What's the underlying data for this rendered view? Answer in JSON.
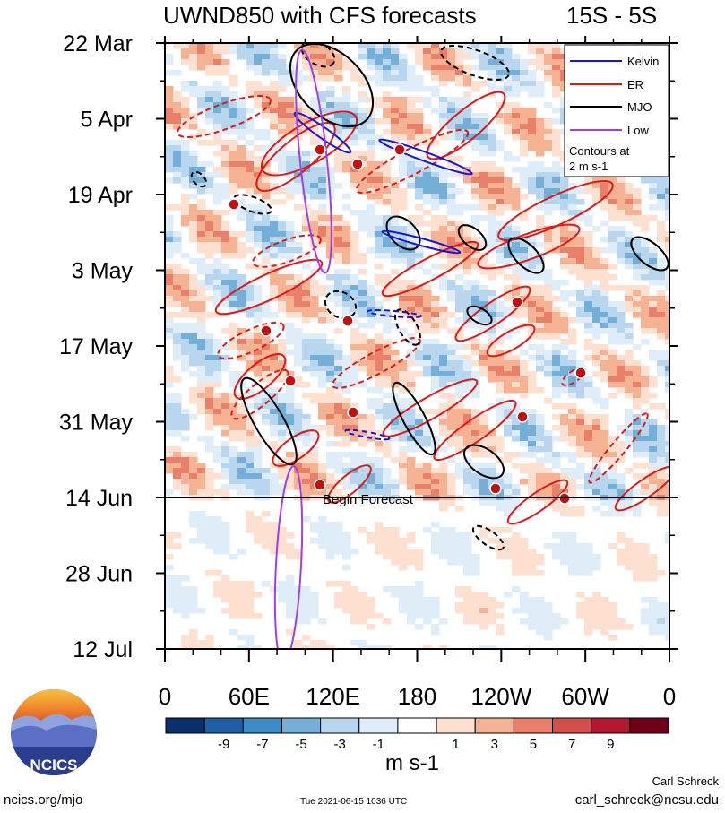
{
  "chart_data": {
    "type": "heatmap",
    "title": "UWND850 with CFS forecasts",
    "region": "15S - 5S",
    "x_ticks": [
      "0",
      "60E",
      "120E",
      "180",
      "120W",
      "60W",
      "0"
    ],
    "y_ticks": [
      "22 Mar",
      "5 Apr",
      "19 Apr",
      "3 May",
      "17 May",
      "31 May",
      "14 Jun",
      "28 Jun",
      "12 Jul"
    ],
    "xlim": [
      0,
      360
    ],
    "ylim_days": [
      0,
      112
    ],
    "legend": {
      "placement": "top-right",
      "entries": [
        {
          "label": "Kelvin",
          "color": "#1515dd"
        },
        {
          "label": "ER",
          "color": "#e01818"
        },
        {
          "label": "MJO",
          "color": "#000000"
        },
        {
          "label": "Low",
          "color": "#a040e0"
        }
      ],
      "note_lines": [
        "Contours at",
        "2 m s-1"
      ]
    },
    "forecast_line": {
      "label": "Begin Forecast",
      "date": "14 Jun"
    },
    "colorbar": {
      "tick_labels": [
        "-9",
        "-7",
        "-5",
        "-3",
        "-1",
        "1",
        "3",
        "5",
        "7",
        "9"
      ],
      "colors": [
        "#08306b",
        "#1e5fa6",
        "#3c8cc8",
        "#74afd8",
        "#b8d7ee",
        "#deedf7",
        "#ffffff",
        "#fde0cf",
        "#f6b394",
        "#e8806a",
        "#d4504a",
        "#b4182e",
        "#6e0018"
      ],
      "units": "m s-1"
    },
    "footer": {
      "logo_text": "NCICS",
      "url": "ncics.org/mjo",
      "timestamp": "Tue 2021-06-15 1036 UTC",
      "author": "Carl Schreck",
      "email": "carl_schreck@ncsu.edu"
    }
  }
}
